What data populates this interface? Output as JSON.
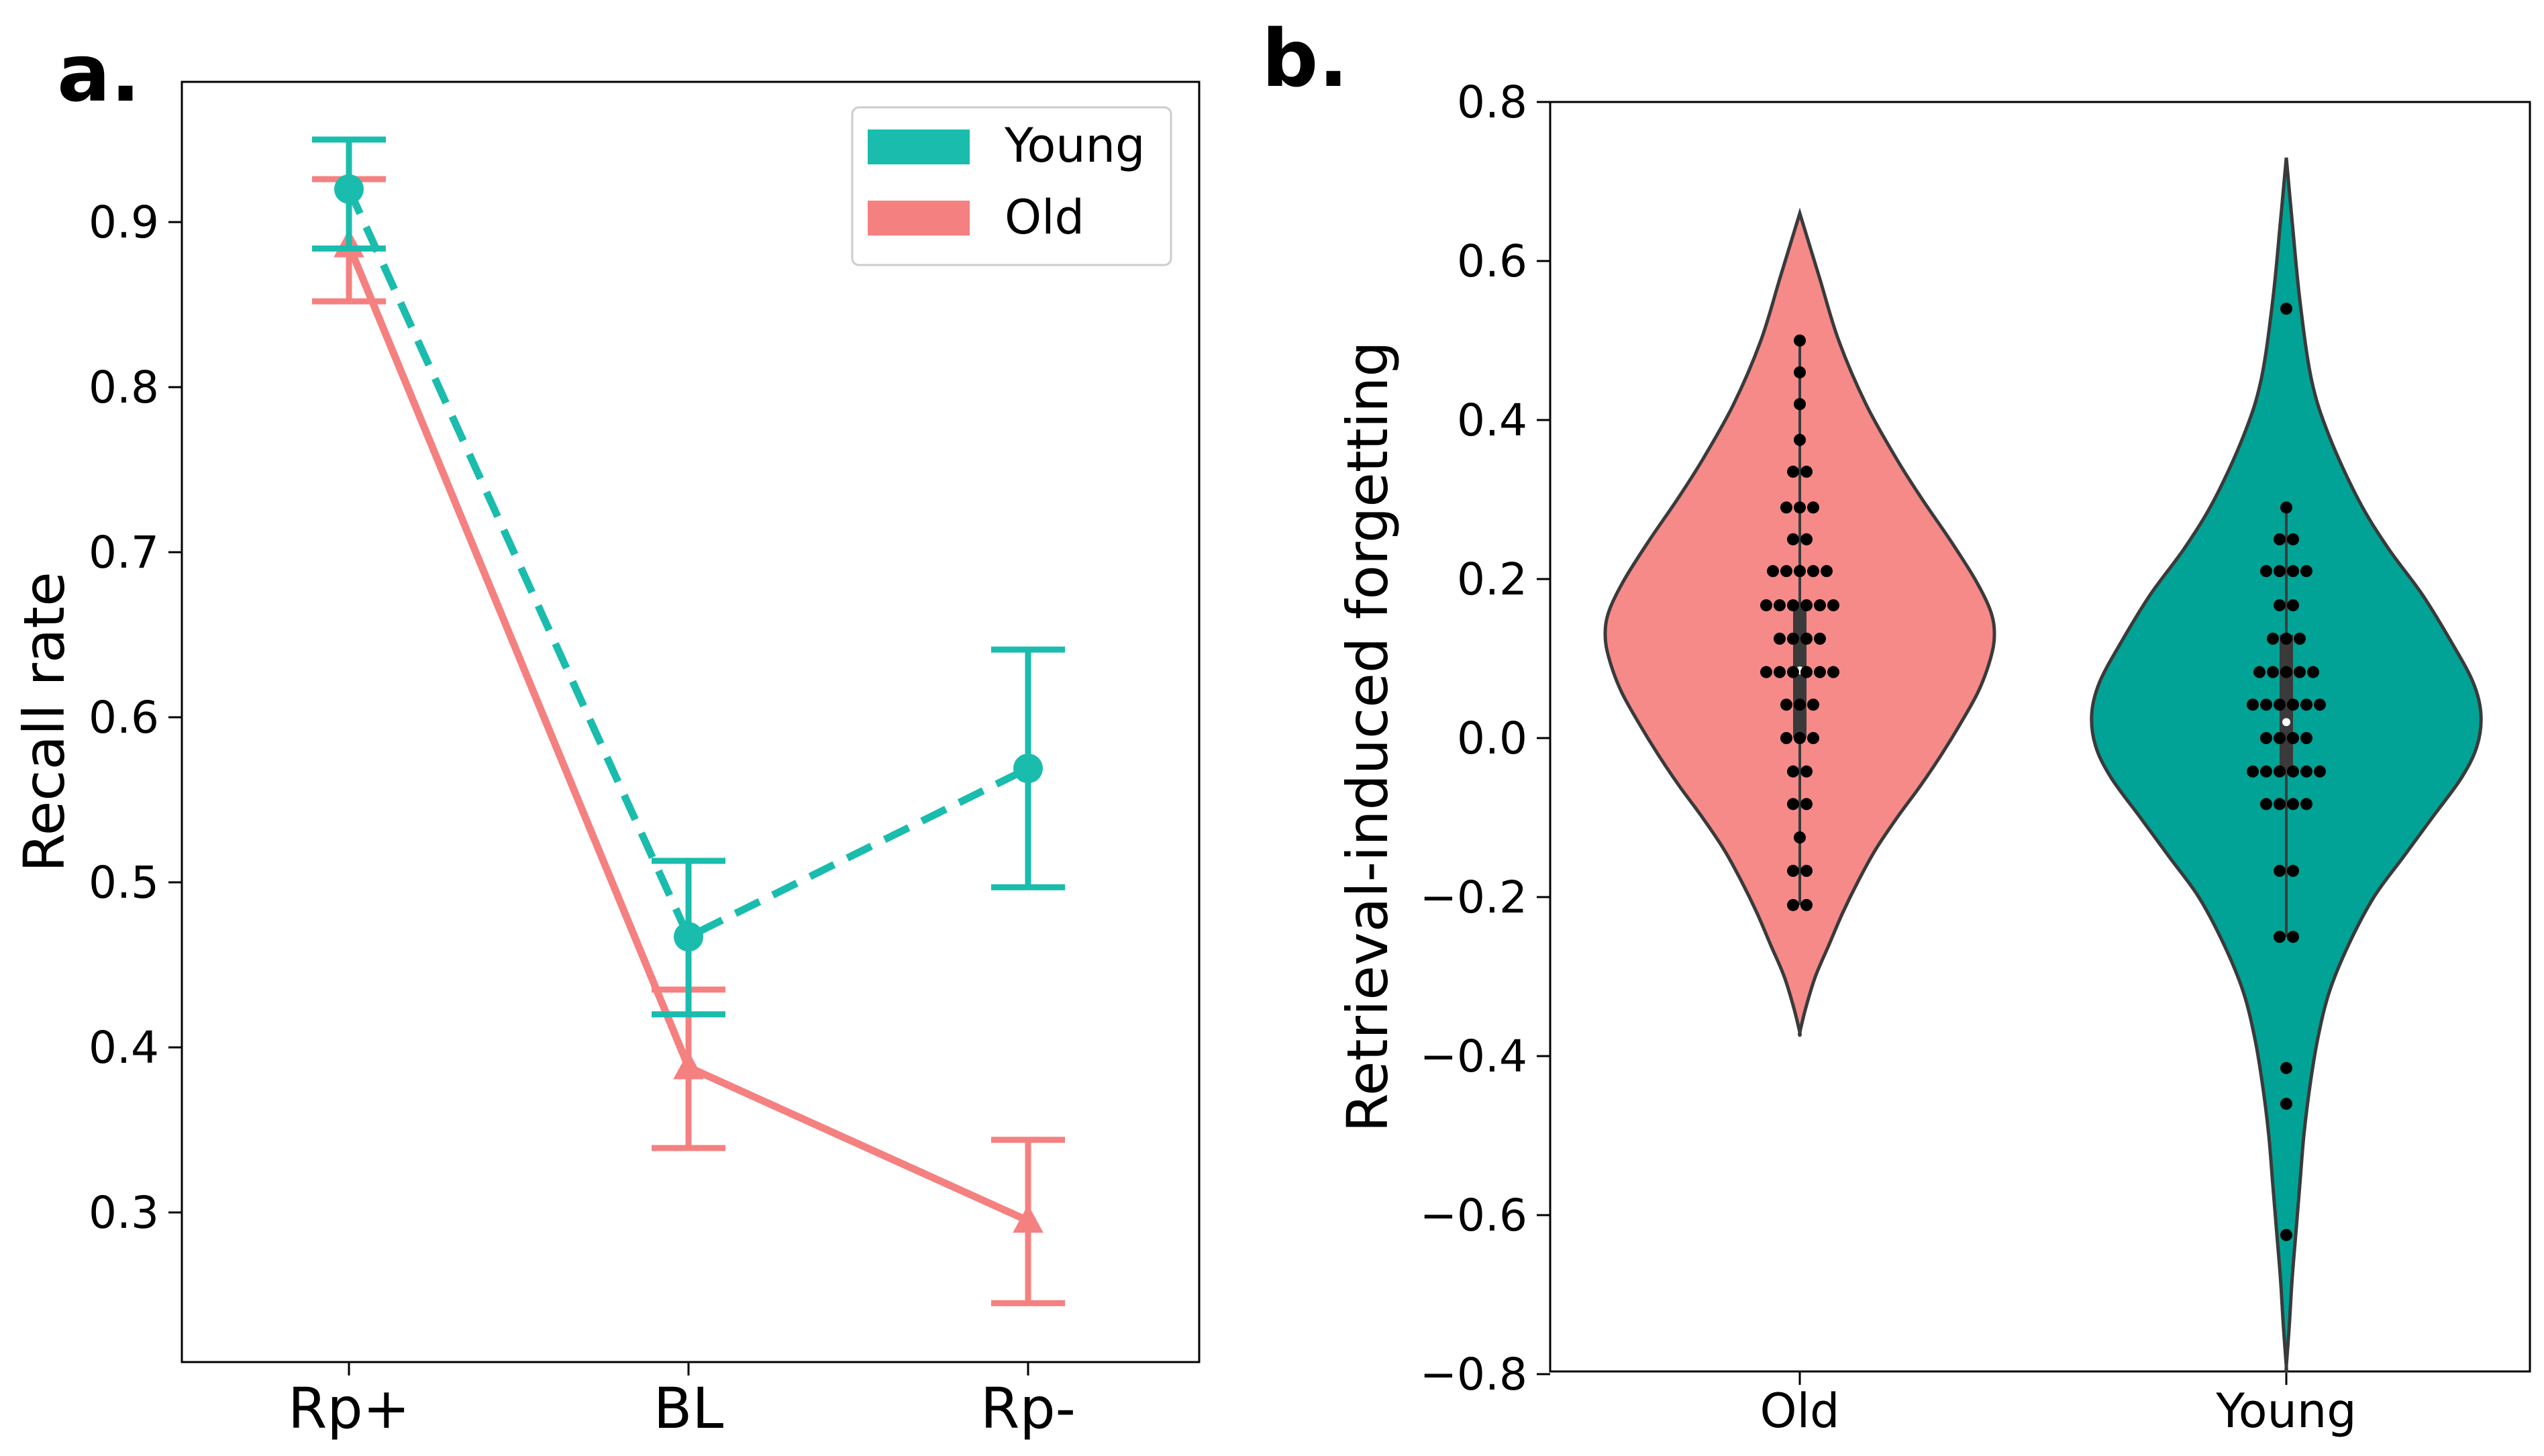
{
  "chart_data": [
    {
      "panel": "a.",
      "type": "line",
      "categories": [
        "Rp+",
        "BL",
        "Rp-"
      ],
      "ylabel": "Recall rate",
      "xlabel": "",
      "ylim": [
        0.215,
        0.99
      ],
      "yticks": [
        "0.3",
        "0.4",
        "0.5",
        "0.6",
        "0.7",
        "0.8",
        "0.9"
      ],
      "legend": {
        "position": "top-right",
        "entries": [
          "Young",
          "Old"
        ]
      },
      "series": [
        {
          "name": "Young",
          "color": "#1abcad",
          "linestyle": "dashed",
          "marker": "circle",
          "values": [
            0.92,
            0.467,
            0.569
          ],
          "err_low": [
            0.884,
            0.42,
            0.497
          ],
          "err_high": [
            0.95,
            0.513,
            0.641
          ]
        },
        {
          "name": "Old",
          "color": "#f58080",
          "linestyle": "solid",
          "marker": "triangle",
          "values": [
            0.886,
            0.388,
            0.295
          ],
          "err_low": [
            0.852,
            0.339,
            0.245
          ],
          "err_high": [
            0.926,
            0.435,
            0.344
          ]
        }
      ]
    },
    {
      "panel": "b.",
      "type": "violin",
      "categories": [
        "Old",
        "Young"
      ],
      "ylabel": "Retrieval-induced forgetting",
      "xlabel": "",
      "ylim": [
        -0.8,
        0.8
      ],
      "yticks": [
        "−0.8",
        "−0.6",
        "−0.4",
        "−0.2",
        "0.0",
        "0.2",
        "0.4",
        "0.6",
        "0.8"
      ],
      "violins": [
        {
          "name": "Old",
          "color": "#f58a88",
          "kde_y": [
            0.66,
            0.58,
            0.5,
            0.42,
            0.35,
            0.3,
            0.25,
            0.2,
            0.16,
            0.13,
            0.1,
            0.06,
            0.02,
            -0.02,
            -0.06,
            -0.1,
            -0.14,
            -0.18,
            -0.22,
            -0.26,
            -0.3,
            -0.34,
            -0.37
          ],
          "kde_w": [
            0.0,
            0.1,
            0.2,
            0.34,
            0.5,
            0.63,
            0.77,
            0.9,
            0.98,
            1.0,
            0.98,
            0.92,
            0.83,
            0.73,
            0.62,
            0.5,
            0.39,
            0.3,
            0.22,
            0.15,
            0.08,
            0.03,
            0.0
          ],
          "points": [
            0.5,
            0.46,
            0.42,
            0.375,
            0.335,
            0.335,
            0.29,
            0.29,
            0.29,
            0.25,
            0.25,
            0.21,
            0.21,
            0.21,
            0.21,
            0.21,
            0.167,
            0.167,
            0.167,
            0.167,
            0.167,
            0.167,
            0.125,
            0.125,
            0.125,
            0.125,
            0.083,
            0.083,
            0.083,
            0.083,
            0.083,
            0.083,
            0.042,
            0.042,
            0.042,
            0.0,
            0.0,
            0.0,
            -0.042,
            -0.042,
            -0.083,
            -0.083,
            -0.125,
            -0.167,
            -0.167,
            -0.21,
            -0.21
          ],
          "box": {
            "q1": 0.0,
            "median": 0.085,
            "q3": 0.17,
            "whisker_low": -0.21,
            "whisker_high": 0.5
          }
        },
        {
          "name": "Young",
          "color": "#00a396",
          "kde_y": [
            0.73,
            0.65,
            0.55,
            0.45,
            0.38,
            0.3,
            0.24,
            0.18,
            0.12,
            0.07,
            0.03,
            -0.01,
            -0.05,
            -0.1,
            -0.15,
            -0.2,
            -0.26,
            -0.32,
            -0.38,
            -0.44,
            -0.5,
            -0.56,
            -0.62,
            -0.68,
            -0.74,
            -0.79
          ],
          "kde_w": [
            0.0,
            0.03,
            0.07,
            0.13,
            0.22,
            0.37,
            0.52,
            0.7,
            0.85,
            0.96,
            1.0,
            0.98,
            0.9,
            0.75,
            0.6,
            0.45,
            0.32,
            0.22,
            0.16,
            0.12,
            0.09,
            0.07,
            0.05,
            0.03,
            0.015,
            0.0
          ],
          "points": [
            0.54,
            0.29,
            0.25,
            0.25,
            0.21,
            0.21,
            0.21,
            0.21,
            0.167,
            0.167,
            0.125,
            0.125,
            0.125,
            0.083,
            0.083,
            0.083,
            0.083,
            0.083,
            0.042,
            0.042,
            0.042,
            0.042,
            0.042,
            0.042,
            0.0,
            0.0,
            0.0,
            0.0,
            -0.042,
            -0.042,
            -0.042,
            -0.042,
            -0.042,
            -0.042,
            -0.083,
            -0.083,
            -0.083,
            -0.083,
            -0.167,
            -0.167,
            -0.25,
            -0.25,
            -0.415,
            -0.46,
            -0.625
          ],
          "box": {
            "q1": -0.04,
            "median": 0.02,
            "q3": 0.13,
            "whisker_low": -0.25,
            "whisker_high": 0.29
          }
        }
      ]
    }
  ]
}
